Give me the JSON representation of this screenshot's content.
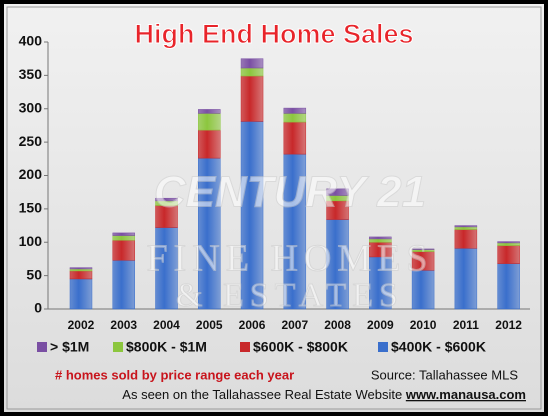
{
  "chart_data": {
    "type": "stacked_bar",
    "title": "High End Home Sales",
    "categories": [
      "2002",
      "2003",
      "2004",
      "2005",
      "2006",
      "2007",
      "2008",
      "2009",
      "2010",
      "2011",
      "2012"
    ],
    "series": [
      {
        "name": "$400K - $600K",
        "color": "#3a6fcc",
        "values": [
          45,
          73,
          122,
          226,
          281,
          232,
          134,
          78,
          58,
          91,
          68
        ]
      },
      {
        "name": "$600K - $800K",
        "color": "#c8282a",
        "values": [
          12,
          30,
          33,
          42,
          68,
          48,
          28,
          22,
          28,
          28,
          27
        ]
      },
      {
        "name": "$800K - $1M",
        "color": "#8cc63e",
        "values": [
          3,
          7,
          7,
          25,
          12,
          13,
          8,
          5,
          3,
          4,
          4
        ]
      },
      {
        "name": "> $1M",
        "color": "#7a4fa3",
        "values": [
          2,
          4,
          4,
          6,
          14,
          8,
          10,
          3,
          1,
          2,
          2
        ]
      }
    ],
    "ylim": [
      0,
      400
    ],
    "yticks": [
      0,
      50,
      100,
      150,
      200,
      250,
      300,
      350,
      400
    ],
    "grid": false,
    "watermark": [
      "CENTURY 21",
      "FINE HOMES",
      "& ESTATES"
    ],
    "footer": {
      "caption": "# homes sold by price range each year",
      "source": "Source: Tallahassee MLS",
      "credit": "As seen on the Tallahassee Real Estate Website",
      "url": "www.manausa.com"
    }
  }
}
